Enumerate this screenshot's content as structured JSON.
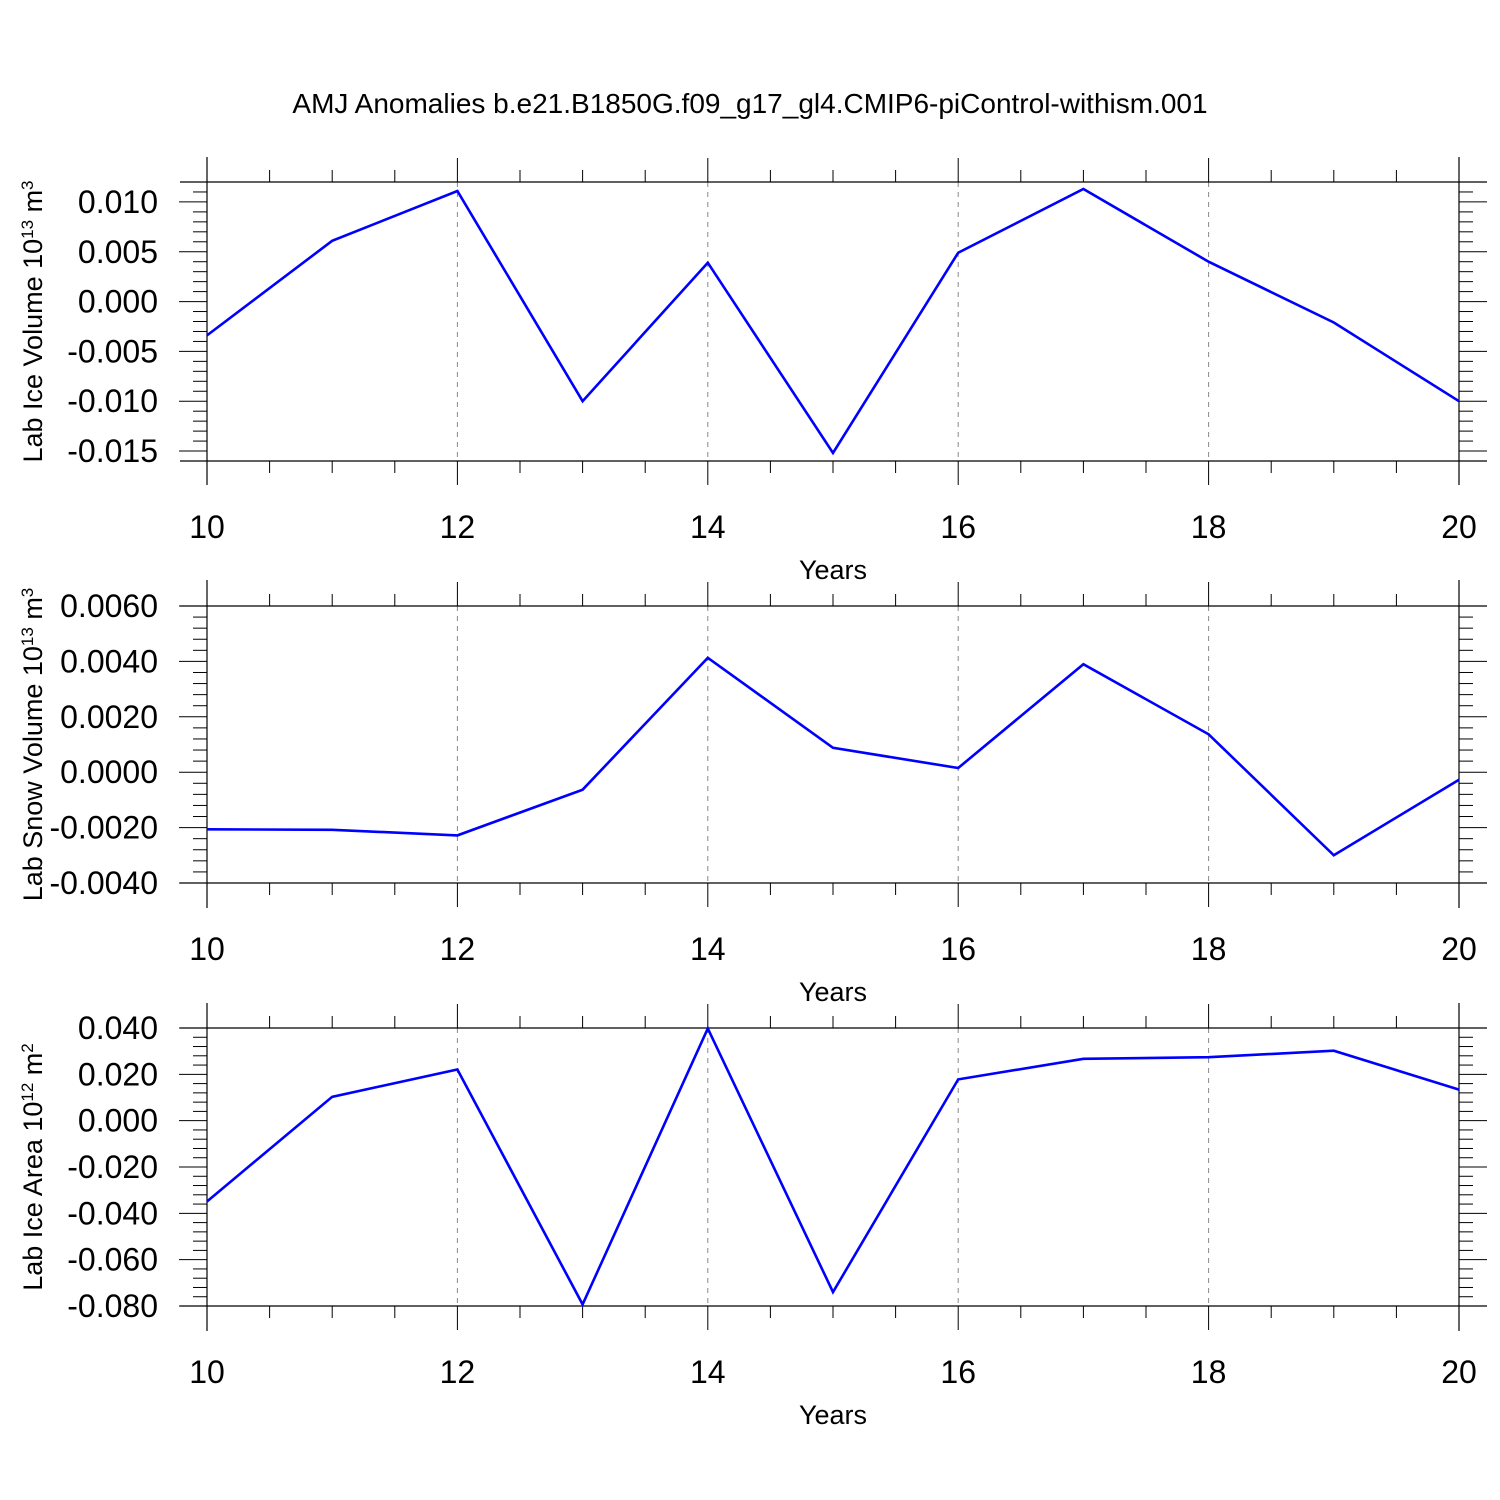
{
  "title": "AMJ Anomalies b.e21.B1850G.f09_g17_gl4.CMIP6-piControl-withism.001",
  "colors": {
    "line": "#0000ff",
    "axis": "#000000",
    "grid": "#888888"
  },
  "chart_data": [
    {
      "type": "line",
      "xlabel": "Years",
      "ylabel": "Lab Ice Volume 10",
      "ylabel_exp": "13",
      "ylabel_unit": " m",
      "ylabel_unit_exp": "3",
      "xlim": [
        10,
        20
      ],
      "ylim": [
        -0.016,
        0.012
      ],
      "xticks": [
        10,
        12,
        14,
        16,
        18,
        20
      ],
      "xtick_labels": [
        "10",
        "12",
        "14",
        "16",
        "18",
        "20"
      ],
      "yticks": [
        -0.015,
        -0.01,
        -0.005,
        0.0,
        0.005,
        0.01
      ],
      "ytick_labels": [
        "-0.015",
        "-0.010",
        "-0.005",
        "0.000",
        "0.005",
        "0.010"
      ],
      "grid": "vertical dashed",
      "x": [
        10,
        11,
        12,
        13,
        14,
        15,
        16,
        17,
        18,
        19,
        20
      ],
      "values": [
        -0.0034,
        0.0061,
        0.0111,
        -0.01,
        0.0039,
        -0.0152,
        0.0049,
        0.0113,
        0.004,
        -0.0021,
        -0.01
      ]
    },
    {
      "type": "line",
      "xlabel": "Years",
      "ylabel": "Lab Snow Volume 10",
      "ylabel_exp": "13",
      "ylabel_unit": " m",
      "ylabel_unit_exp": "3",
      "xlim": [
        10,
        20
      ],
      "ylim": [
        -0.004,
        0.006
      ],
      "xticks": [
        10,
        12,
        14,
        16,
        18,
        20
      ],
      "xtick_labels": [
        "10",
        "12",
        "14",
        "16",
        "18",
        "20"
      ],
      "yticks": [
        -0.004,
        -0.002,
        0.0,
        0.002,
        0.004,
        0.006
      ],
      "ytick_labels": [
        "-0.0040",
        "-0.0020",
        "0.0000",
        "0.0020",
        "0.0040",
        "0.0060"
      ],
      "grid": "vertical dashed",
      "x": [
        10,
        11,
        12,
        13,
        14,
        15,
        16,
        17,
        18,
        19,
        20
      ],
      "values": [
        -0.00206,
        -0.00208,
        -0.00228,
        -0.00063,
        0.00413,
        0.00088,
        0.00015,
        0.0039,
        0.00137,
        -0.003,
        -0.00027
      ]
    },
    {
      "type": "line",
      "xlabel": "Years",
      "ylabel": "Lab Ice Area 10",
      "ylabel_exp": "12",
      "ylabel_unit": " m",
      "ylabel_unit_exp": "2",
      "xlim": [
        10,
        20
      ],
      "ylim": [
        -0.08,
        0.04
      ],
      "xticks": [
        10,
        12,
        14,
        16,
        18,
        20
      ],
      "xtick_labels": [
        "10",
        "12",
        "14",
        "16",
        "18",
        "20"
      ],
      "yticks": [
        -0.08,
        -0.06,
        -0.04,
        -0.02,
        0.0,
        0.02,
        0.04
      ],
      "ytick_labels": [
        "-0.080",
        "-0.060",
        "-0.040",
        "-0.020",
        "0.000",
        "0.020",
        "0.040"
      ],
      "grid": "vertical dashed",
      "x": [
        10,
        11,
        12,
        13,
        14,
        15,
        16,
        17,
        18,
        19,
        20
      ],
      "values": [
        -0.0349,
        0.0103,
        0.0221,
        -0.0793,
        0.0398,
        -0.074,
        0.0178,
        0.0267,
        0.0274,
        0.0302,
        0.0134
      ]
    }
  ]
}
